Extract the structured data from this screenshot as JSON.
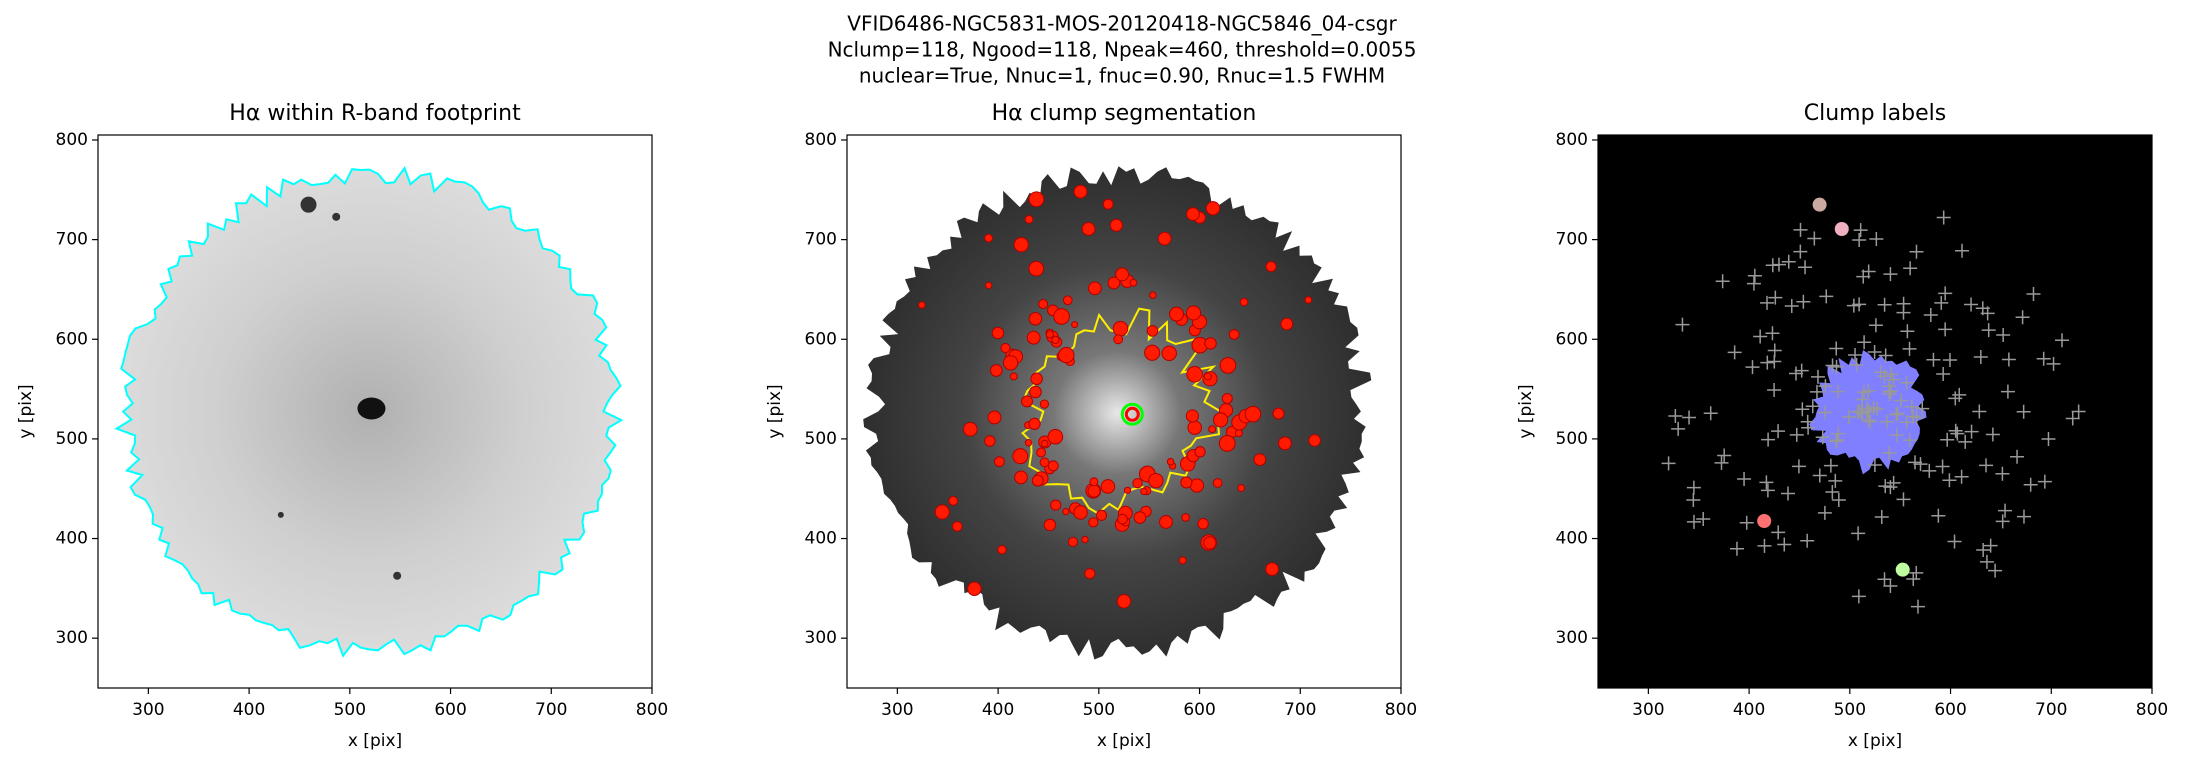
{
  "title_lines": [
    "VFID6486-NGC5831-MOS-20120418-NGC5846_04-csgr",
    "Nclump=118, Ngood=118, Npeak=460, threshold=0.0055",
    "nuclear=True, Nnuc=1, fnuc=0.90, Rnuc=1.5 FWHM"
  ],
  "chart_data": [
    {
      "type": "image",
      "title": "Hα within R-band footprint",
      "xlabel": "x [pix]",
      "ylabel": "y [pix]",
      "xlim": [
        250,
        800
      ],
      "ylim": [
        250,
        805
      ],
      "xticks": [
        300,
        400,
        500,
        600,
        700,
        800
      ],
      "yticks": [
        300,
        400,
        500,
        600,
        700,
        800
      ],
      "style": "footprint"
    },
    {
      "type": "image",
      "title": "Hα clump segmentation",
      "xlabel": "x [pix]",
      "ylabel": "y [pix]",
      "xlim": [
        250,
        800
      ],
      "ylim": [
        250,
        805
      ],
      "xticks": [
        300,
        400,
        500,
        600,
        700,
        800
      ],
      "yticks": [
        300,
        400,
        500,
        600,
        700,
        800
      ],
      "style": "segmentation"
    },
    {
      "type": "image",
      "title": "Clump labels",
      "xlabel": "x [pix]",
      "ylabel": "y [pix]",
      "xlim": [
        250,
        800
      ],
      "ylim": [
        250,
        805
      ],
      "xticks": [
        300,
        400,
        500,
        600,
        700,
        800
      ],
      "yticks": [
        300,
        400,
        500,
        600,
        700,
        800
      ],
      "style": "labels"
    }
  ]
}
